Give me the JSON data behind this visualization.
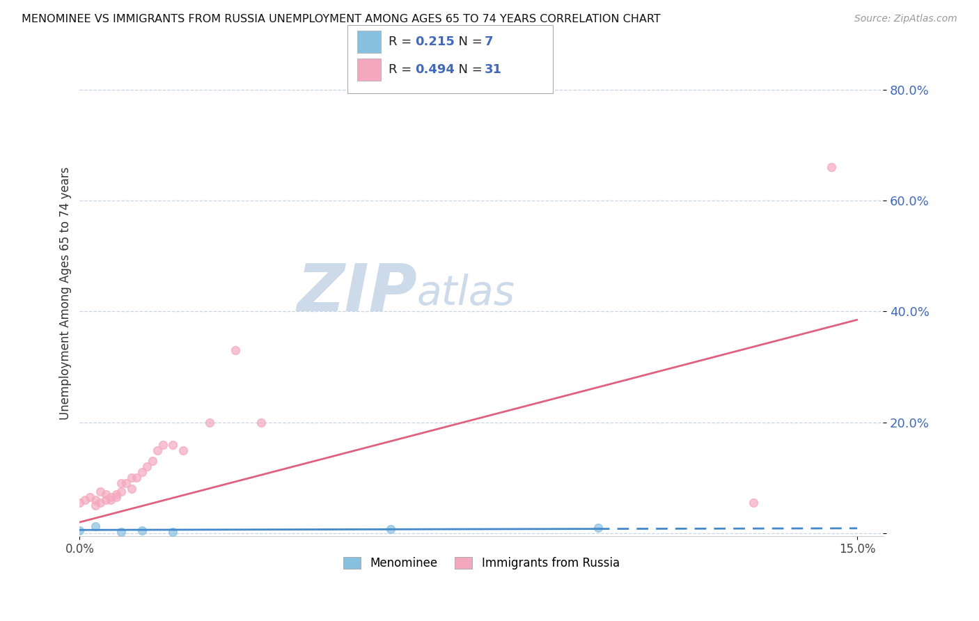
{
  "title": "MENOMINEE VS IMMIGRANTS FROM RUSSIA UNEMPLOYMENT AMONG AGES 65 TO 74 YEARS CORRELATION CHART",
  "source": "Source: ZipAtlas.com",
  "ylabel": "Unemployment Among Ages 65 to 74 years",
  "xlim": [
    0.0,
    0.155
  ],
  "ylim": [
    -0.005,
    0.87
  ],
  "yticks": [
    0.0,
    0.2,
    0.4,
    0.6,
    0.8
  ],
  "ytick_labels": [
    "",
    "20.0%",
    "40.0%",
    "60.0%",
    "80.0%"
  ],
  "xtick_vals": [
    0.0,
    0.15
  ],
  "xtick_labels": [
    "0.0%",
    "15.0%"
  ],
  "legend_R1": "0.215",
  "legend_N1": "7",
  "legend_R2": "0.494",
  "legend_N2": "31",
  "menominee_color": "#88c0e0",
  "russia_color": "#f4a8c0",
  "trendline1_color": "#4488cc",
  "trendline2_color": "#e06080",
  "background_color": "#ffffff",
  "grid_color": "#c8d4e4",
  "menominee_x": [
    0.0,
    0.003,
    0.008,
    0.012,
    0.018,
    0.06,
    0.1
  ],
  "menominee_y": [
    0.005,
    0.012,
    0.002,
    0.005,
    0.003,
    0.008,
    0.01
  ],
  "russia_x": [
    0.0,
    0.001,
    0.002,
    0.003,
    0.003,
    0.004,
    0.004,
    0.005,
    0.005,
    0.006,
    0.006,
    0.007,
    0.007,
    0.008,
    0.008,
    0.009,
    0.01,
    0.01,
    0.011,
    0.012,
    0.013,
    0.014,
    0.015,
    0.016,
    0.018,
    0.02,
    0.025,
    0.03,
    0.035,
    0.13,
    0.145
  ],
  "russia_y": [
    0.055,
    0.06,
    0.065,
    0.05,
    0.06,
    0.055,
    0.075,
    0.06,
    0.07,
    0.06,
    0.065,
    0.065,
    0.07,
    0.075,
    0.09,
    0.09,
    0.08,
    0.1,
    0.1,
    0.11,
    0.12,
    0.13,
    0.15,
    0.16,
    0.16,
    0.15,
    0.2,
    0.33,
    0.2,
    0.055,
    0.66
  ],
  "russia_outlier_x": [
    0.145
  ],
  "russia_outlier_y": [
    0.66
  ],
  "trendline_russia_x0": 0.0,
  "trendline_russia_y0": 0.02,
  "trendline_russia_x1": 0.15,
  "trendline_russia_y1": 0.385,
  "trendline_men_x0": 0.0,
  "trendline_men_y0": 0.006,
  "trendline_men_x1": 0.15,
  "trendline_men_y1": 0.009
}
